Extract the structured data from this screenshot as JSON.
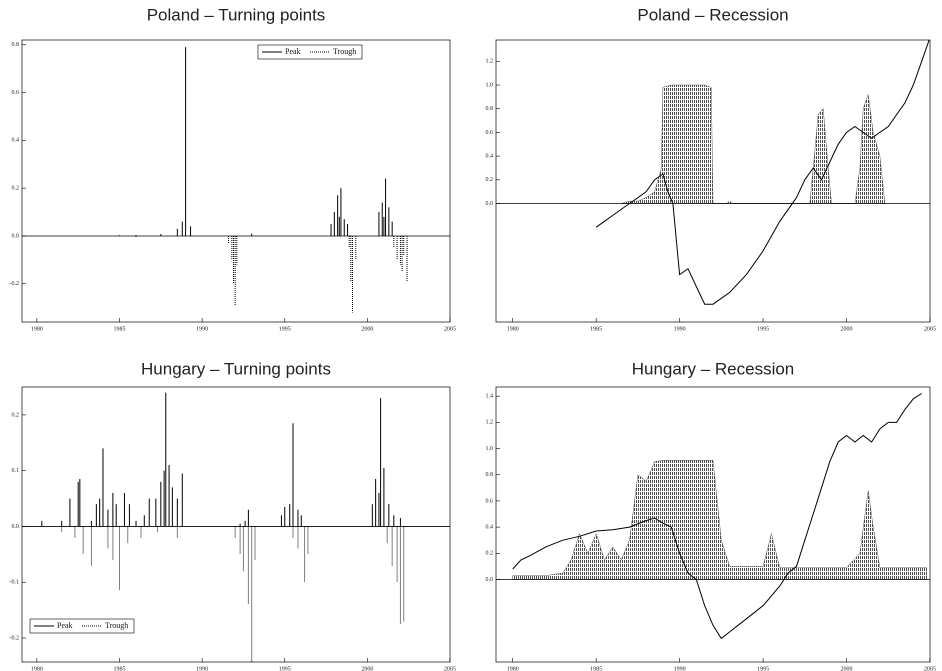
{
  "chart_data": [
    {
      "type": "spikes",
      "title": "Poland – Turning points",
      "xlim": [
        1979.1,
        2005
      ],
      "xticks": [
        1980,
        1985,
        1990,
        1995,
        2000,
        2005
      ],
      "ylim": [
        -0.36,
        0.82
      ],
      "yticks": [
        {
          "value": 0,
          "label": "0.0"
        },
        0.2,
        0.4,
        0.6,
        0.8,
        -0.2
      ],
      "legend": "top",
      "series": [
        {
          "name": "Peak",
          "color": "#000000",
          "style": "solid",
          "x": [
            1985,
            1986,
            1987.5,
            1988.5,
            1988.8,
            1989.0,
            1989.3,
            1993,
            1997.8,
            1998.0,
            1998.2,
            1998.3,
            1998.4,
            1998.6,
            1998.8,
            2000.7,
            2000.9,
            2001.0,
            2001.1,
            2001.3,
            2001.5
          ],
          "values": [
            0.003,
            0.003,
            0.008,
            0.03,
            0.06,
            0.79,
            0.04,
            0.01,
            0.05,
            0.1,
            0.17,
            0.08,
            0.2,
            0.07,
            0.05,
            0.1,
            0.14,
            0.08,
            0.24,
            0.12,
            0.06
          ]
        },
        {
          "name": "Trough",
          "color": "#000000",
          "style": "dotted",
          "x": [
            1986,
            1991.6,
            1991.8,
            1991.9,
            1992.0,
            1992.1,
            1998.9,
            1999.0,
            1999.1,
            1999.3,
            2001.6,
            2001.8,
            2002.0,
            2002.1,
            2002.2,
            2002.4
          ],
          "values": [
            -0.005,
            -0.03,
            -0.1,
            -0.2,
            -0.29,
            -0.12,
            -0.05,
            -0.19,
            -0.32,
            -0.1,
            -0.05,
            -0.1,
            -0.12,
            -0.15,
            -0.08,
            -0.19
          ]
        }
      ]
    },
    {
      "type": "recession",
      "title": "Poland – Recession",
      "xlim": [
        1979,
        2005
      ],
      "xticks": [
        1980,
        1985,
        1990,
        1995,
        2000,
        2005
      ],
      "ylim": [
        -1.0,
        1.38
      ],
      "yticks": [
        {
          "value": 0,
          "label": "0.0"
        },
        0.2,
        0.4,
        0.6,
        0.8,
        {
          "value": 1,
          "label": "1.0"
        },
        1.2
      ],
      "series": [
        {
          "kind": "area",
          "color": "#333333",
          "x": [
            1986.5,
            1987,
            1987.5,
            1988,
            1988.5,
            1988.9,
            1989.0,
            1989.5,
            1990,
            1990.5,
            1991,
            1991.5,
            1991.9,
            1992.0,
            1992.8,
            1993,
            1993.2,
            1997.8,
            1998.0,
            1998.3,
            1998.6,
            1998.9,
            1999.1,
            2000.5,
            2000.8,
            2001.0,
            2001.3,
            2001.6,
            2002.0,
            2002.3
          ],
          "values": [
            0,
            0.02,
            0.02,
            0.05,
            0.1,
            0.3,
            0.98,
            1.0,
            1.0,
            1.0,
            1.0,
            1.0,
            0.98,
            0,
            0,
            0.02,
            0,
            0,
            0.3,
            0.75,
            0.8,
            0.3,
            0,
            0,
            0.3,
            0.8,
            0.92,
            0.6,
            0.4,
            0
          ]
        },
        {
          "kind": "line",
          "color": "#000000",
          "x": [
            1985.0,
            1985.5,
            1986,
            1986.5,
            1987,
            1987.5,
            1988,
            1988.5,
            1989,
            1989.3,
            1989.6,
            1990,
            1990.5,
            1991,
            1991.5,
            1992,
            1992.5,
            1993,
            1994,
            1995,
            1996,
            1997,
            1997.5,
            1998,
            1998.5,
            1999,
            1999.5,
            2000,
            2000.5,
            2001,
            2001.5,
            2002,
            2002.5,
            2003,
            2003.5,
            2004,
            2004.5,
            2005
          ],
          "values": [
            -0.2,
            -0.15,
            -0.1,
            -0.05,
            0.0,
            0.05,
            0.1,
            0.2,
            0.25,
            0.1,
            0.0,
            -0.6,
            -0.55,
            -0.7,
            -0.85,
            -0.85,
            -0.8,
            -0.75,
            -0.6,
            -0.4,
            -0.15,
            0.05,
            0.2,
            0.3,
            0.2,
            0.35,
            0.5,
            0.6,
            0.65,
            0.6,
            0.55,
            0.6,
            0.65,
            0.75,
            0.85,
            1.0,
            1.2,
            1.4
          ]
        }
      ]
    },
    {
      "type": "spikes",
      "title": "Hungary – Turning points",
      "xlim": [
        1979.1,
        2005
      ],
      "xticks": [
        1980,
        1985,
        1990,
        1995,
        2000,
        2005
      ],
      "ylim": [
        -0.243,
        0.25
      ],
      "yticks": [
        {
          "value": 0,
          "label": "0.0"
        },
        0.1,
        0.2,
        -0.1,
        -0.2
      ],
      "legend": "bottom-left",
      "series": [
        {
          "name": "Peak",
          "color": "#000000",
          "style": "solid",
          "x": [
            1980.3,
            1981.5,
            1982,
            1982.5,
            1982.6,
            1983.3,
            1983.6,
            1983.8,
            1984.0,
            1984.3,
            1984.6,
            1984.8,
            1985.3,
            1985.6,
            1986,
            1986.5,
            1986.8,
            1987.2,
            1987.5,
            1987.7,
            1987.8,
            1988,
            1988.2,
            1988.5,
            1988.8,
            1992.3,
            1992.6,
            1992.8,
            1994.8,
            1995.0,
            1995.3,
            1995.5,
            1995.8,
            1996,
            2000.3,
            2000.5,
            2000.7,
            2000.8,
            2001,
            2001.3,
            2001.6,
            2002
          ],
          "values": [
            0.01,
            0.01,
            0.05,
            0.08,
            0.085,
            0.01,
            0.04,
            0.05,
            0.14,
            0.03,
            0.06,
            0.04,
            0.06,
            0.04,
            0.01,
            0.02,
            0.05,
            0.05,
            0.08,
            0.1,
            0.24,
            0.11,
            0.07,
            0.05,
            0.095,
            0.005,
            0.01,
            0.03,
            0.02,
            0.035,
            0.04,
            0.185,
            0.03,
            0.02,
            0.04,
            0.085,
            0.06,
            0.23,
            0.105,
            0.04,
            0.02,
            0.015
          ]
        },
        {
          "name": "Trough",
          "color": "#000000",
          "style": "dotted",
          "x": [
            1981.5,
            1982.3,
            1982.8,
            1983.3,
            1984.3,
            1984.6,
            1985.0,
            1985.5,
            1986.3,
            1987.3,
            1988.5,
            1992.0,
            1992.3,
            1992.5,
            1992.8,
            1993.0,
            1993.2,
            1995.5,
            1995.8,
            1996.2,
            1996.4,
            2001.2,
            2001.5,
            2001.8,
            2002.0,
            2002.2
          ],
          "values": [
            -0.01,
            -0.02,
            -0.05,
            -0.07,
            -0.04,
            -0.06,
            -0.115,
            -0.03,
            -0.02,
            -0.01,
            -0.02,
            -0.02,
            -0.05,
            -0.08,
            -0.14,
            -0.245,
            -0.06,
            -0.02,
            -0.04,
            -0.1,
            -0.05,
            -0.03,
            -0.07,
            -0.1,
            -0.175,
            -0.17
          ]
        }
      ]
    },
    {
      "type": "recession",
      "title": "Hungary – Recession",
      "xlim": [
        1979,
        2005
      ],
      "xticks": [
        1980,
        1985,
        1990,
        1995,
        2000,
        2005
      ],
      "ylim": [
        -0.63,
        1.47
      ],
      "yticks": [
        {
          "value": 0,
          "label": "0.0"
        },
        0.2,
        0.4,
        0.6,
        0.8,
        {
          "value": 1,
          "label": "1.0"
        },
        1.2,
        1.4
      ],
      "series": [
        {
          "kind": "area",
          "color": "#333333",
          "x": [
            1980,
            1982,
            1983,
            1983.5,
            1984,
            1984.5,
            1985,
            1985.5,
            1986,
            1986.5,
            1987,
            1987.5,
            1988,
            1988.5,
            1989,
            1990,
            1991,
            1992,
            1992.5,
            1993,
            1994,
            1995,
            1995.5,
            1996,
            1997,
            1998,
            1999,
            2000,
            2000.8,
            2001.3,
            2001.6,
            2002,
            2003,
            2004,
            2004.8,
            2004.8
          ],
          "values": [
            0.03,
            0.03,
            0.05,
            0.15,
            0.35,
            0.2,
            0.35,
            0.15,
            0.25,
            0.15,
            0.3,
            0.8,
            0.75,
            0.9,
            0.91,
            0.91,
            0.91,
            0.91,
            0.3,
            0.1,
            0.1,
            0.1,
            0.35,
            0.09,
            0.09,
            0.09,
            0.09,
            0.09,
            0.2,
            0.68,
            0.4,
            0.09,
            0.09,
            0.09,
            0.09,
            0
          ]
        },
        {
          "kind": "line",
          "color": "#000000",
          "x": [
            1980,
            1980.5,
            1981,
            1982,
            1983,
            1984,
            1985,
            1986,
            1987,
            1988,
            1988.5,
            1989,
            1989.5,
            1990,
            1990.5,
            1991,
            1991.5,
            1992,
            1992.5,
            1993,
            1993.5,
            1994,
            1994.5,
            1995,
            1996,
            1996.5,
            1997,
            1997.5,
            1998,
            1998.5,
            1999,
            1999.5,
            2000,
            2000.5,
            2001,
            2001.5,
            2002,
            2002.5,
            2003,
            2003.5,
            2004,
            2004.5
          ],
          "values": [
            0.08,
            0.15,
            0.18,
            0.25,
            0.3,
            0.33,
            0.37,
            0.38,
            0.4,
            0.45,
            0.47,
            0.43,
            0.4,
            0.2,
            0.05,
            0.0,
            -0.2,
            -0.35,
            -0.45,
            -0.4,
            -0.35,
            -0.3,
            -0.25,
            -0.2,
            -0.05,
            0.05,
            0.1,
            0.3,
            0.5,
            0.7,
            0.9,
            1.05,
            1.1,
            1.05,
            1.1,
            1.05,
            1.15,
            1.2,
            1.2,
            1.3,
            1.38,
            1.42
          ]
        }
      ]
    }
  ]
}
